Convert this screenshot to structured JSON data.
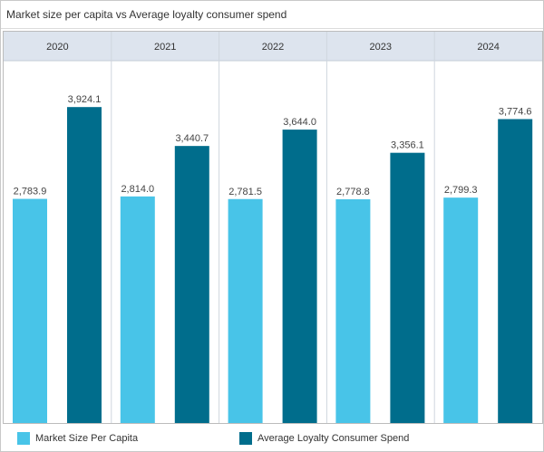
{
  "chart_data": {
    "type": "bar",
    "title": "Market size per capita vs Average loyalty consumer spend",
    "categories": [
      "2020",
      "2021",
      "2022",
      "2023",
      "2024"
    ],
    "series": [
      {
        "name": "Market Size Per Capita",
        "color": "#48c4e8",
        "values": [
          2783.9,
          2814.0,
          2781.5,
          2778.8,
          2799.3
        ],
        "labels": [
          "2,783.9",
          "2,814.0",
          "2,781.5",
          "2,778.8",
          "2,799.3"
        ]
      },
      {
        "name": "Average Loyalty Consumer Spend",
        "color": "#006d8c",
        "values": [
          3924.1,
          3440.7,
          3644.0,
          3356.1,
          3774.6
        ],
        "labels": [
          "3,924.1",
          "3,440.7",
          "3,644.0",
          "3,356.1",
          "3,774.6"
        ]
      }
    ],
    "ylim": [
      0,
      4500
    ],
    "legend_position": "bottom",
    "grid": false
  }
}
